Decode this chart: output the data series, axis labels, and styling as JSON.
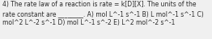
{
  "lines": [
    "4) The rate law of a reaction is rate = k[D][X]. The units of the",
    "rate constant are ________. A) mol L^-1 s^-1 B) L mol^-1 s^-1 C)",
    "mol^2 L^-2 s^-1 D) mol L^-1 s^-2 E) L^2 mol^-2 s^-1"
  ],
  "font_size": 5.5,
  "text_color": "#2a2a2a",
  "background_color": "#f0f0f0",
  "font_family": "DejaVu Sans"
}
